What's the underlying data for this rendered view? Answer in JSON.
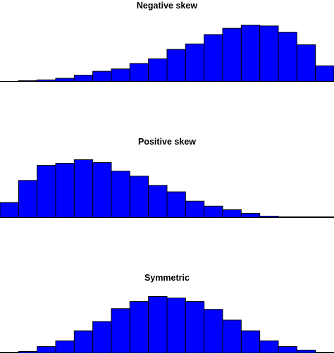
{
  "chart_data": [
    {
      "type": "bar",
      "title": "Negative skew",
      "values": [
        0,
        1,
        2,
        4,
        8,
        13,
        16,
        23,
        29,
        41,
        48,
        60,
        68,
        72,
        71,
        63,
        47,
        20
      ],
      "bar_color": "#0000ff",
      "edge_color": "#000000",
      "ylim": [
        0,
        74
      ],
      "grid": false
    },
    {
      "type": "bar",
      "title": "Positive skew",
      "values": [
        21,
        52,
        73,
        76,
        81,
        77,
        65,
        58,
        45,
        36,
        23,
        16,
        11,
        6,
        2,
        1,
        1,
        1
      ],
      "bar_color": "#0000ff",
      "edge_color": "#000000",
      "ylim": [
        0,
        81
      ],
      "grid": false
    },
    {
      "type": "bar",
      "title": "Symmetric",
      "values": [
        1,
        2,
        9,
        17,
        31,
        44,
        62,
        72,
        79,
        77,
        72,
        61,
        46,
        31,
        17,
        9,
        4,
        1
      ],
      "bar_color": "#0000ff",
      "edge_color": "#000000",
      "ylim": [
        0,
        79
      ],
      "grid": false
    }
  ]
}
